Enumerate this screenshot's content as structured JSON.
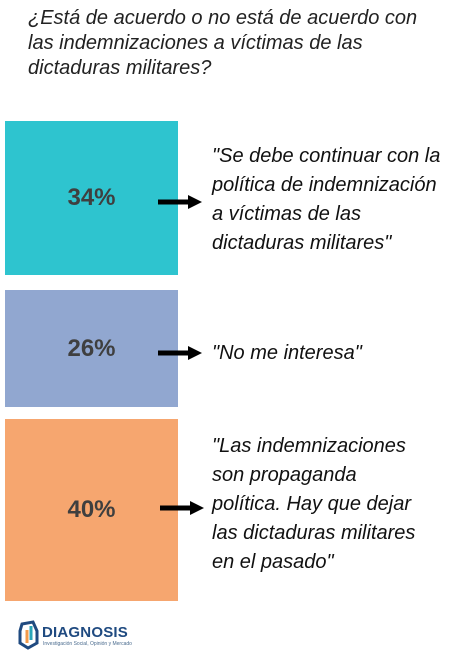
{
  "chart_data": {
    "type": "bar",
    "title": "¿Está de acuerdo o no está de acuerdo con las indemnizaciones a víctimas de las dictaduras militares?",
    "categories": [
      "\"Se debe continuar con la\npolítica de indemnización\na víctimas de las\ndictaduras militares\"",
      "\"No me interesa\"",
      "\"Las indemnizaciones\nson propaganda\npolítica. Hay que dejar\nlas dictaduras militares\nen el pasado\""
    ],
    "values": [
      34,
      26,
      40
    ],
    "value_labels": [
      "34%",
      "26%",
      "40%"
    ],
    "colors": [
      "#2ec4cf",
      "#91a7d0",
      "#f6a66f"
    ]
  },
  "logo": {
    "name": "DIAGNOSIS",
    "tagline": "Investigación Social, Opinión y Mercado"
  }
}
